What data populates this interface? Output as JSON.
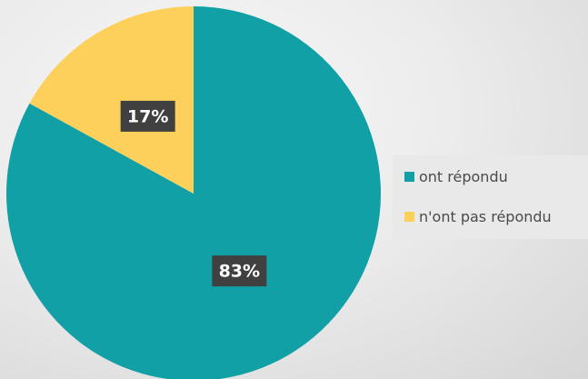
{
  "chart_data": {
    "type": "pie",
    "title": "",
    "series": [
      {
        "name": "ont répondu",
        "value": 83,
        "label": "83%",
        "color": "#10a0a6"
      },
      {
        "name": "n'ont pas répondu",
        "value": 17,
        "label": "17%",
        "color": "#fdd05b"
      }
    ],
    "legend": "right",
    "data_labels": true
  }
}
